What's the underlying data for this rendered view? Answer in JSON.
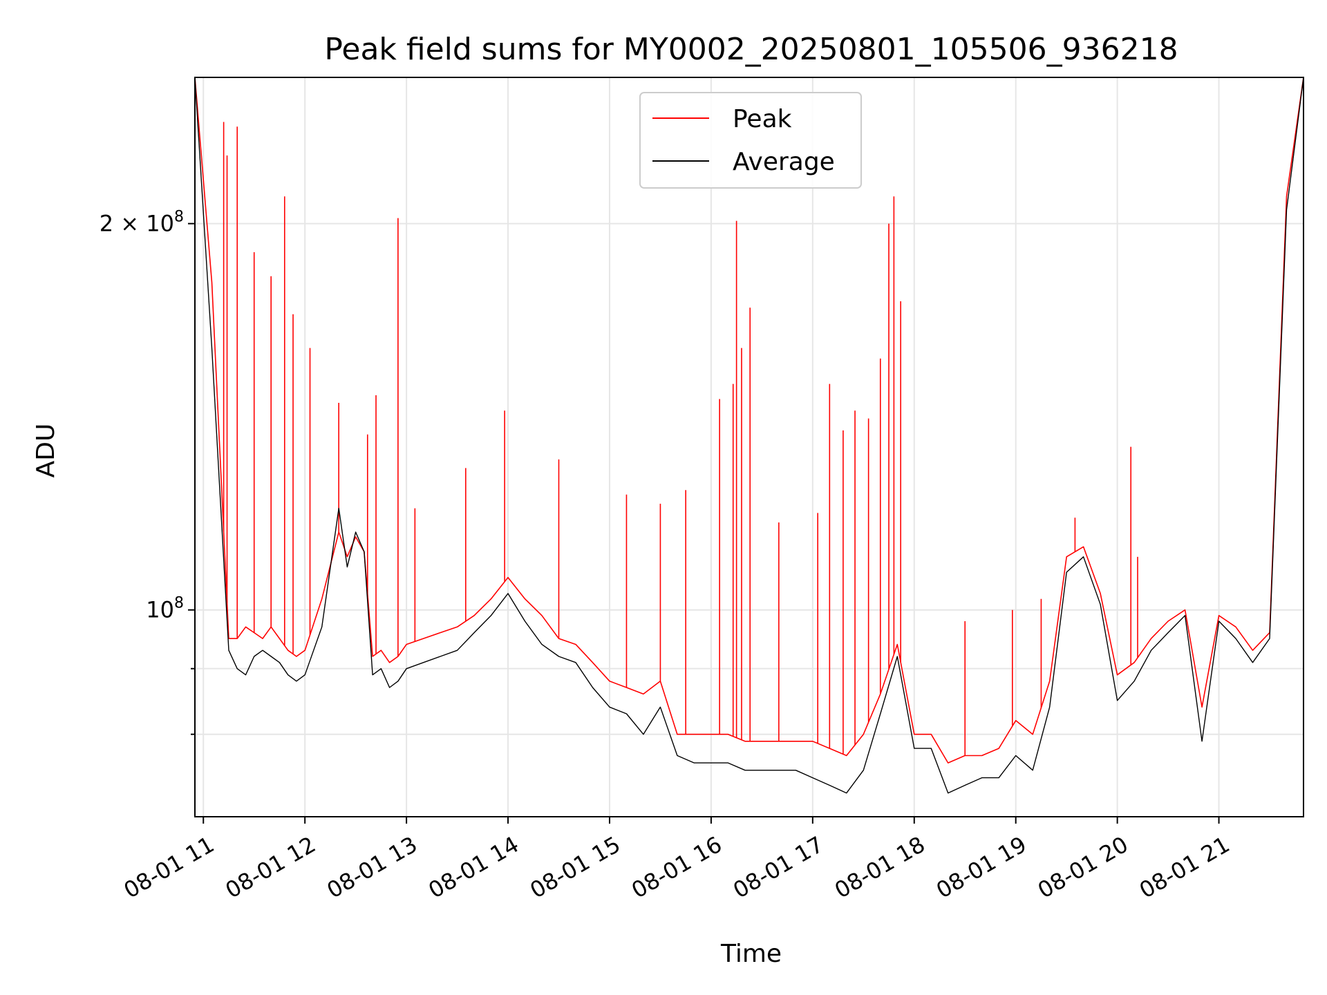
{
  "chart_data": {
    "type": "line",
    "title": "Peak field sums for MY0002_20250801_105506_936218",
    "xlabel": "Time",
    "ylabel": "ADU",
    "y_scale": "log",
    "xlim": [
      "2025-08-01 10:55",
      "2025-08-01 21:50"
    ],
    "ylim": [
      69000000,
      260000000
    ],
    "grid": true,
    "legend_position": "upper center",
    "x_ticks": [
      {
        "value": "2025-08-01 11:00",
        "label": "08-01 11"
      },
      {
        "value": "2025-08-01 12:00",
        "label": "08-01 12"
      },
      {
        "value": "2025-08-01 13:00",
        "label": "08-01 13"
      },
      {
        "value": "2025-08-01 14:00",
        "label": "08-01 14"
      },
      {
        "value": "2025-08-01 15:00",
        "label": "08-01 15"
      },
      {
        "value": "2025-08-01 16:00",
        "label": "08-01 16"
      },
      {
        "value": "2025-08-01 17:00",
        "label": "08-01 17"
      },
      {
        "value": "2025-08-01 18:00",
        "label": "08-01 18"
      },
      {
        "value": "2025-08-01 19:00",
        "label": "08-01 19"
      },
      {
        "value": "2025-08-01 20:00",
        "label": "08-01 20"
      },
      {
        "value": "2025-08-01 21:00",
        "label": "08-01 21"
      }
    ],
    "y_major_ticks": [
      {
        "value": 100000000,
        "base": "10",
        "exp": "8"
      },
      {
        "value": 200000000,
        "mant": "2",
        "base": "10",
        "exp": "8"
      }
    ],
    "y_minor_ticks": [
      80000000,
      90000000
    ],
    "series": [
      {
        "name": "Peak",
        "color": "#ff0000",
        "x": [
          "10:55",
          "11:05",
          "11:15",
          "11:20",
          "11:25",
          "11:30",
          "11:35",
          "11:40",
          "11:45",
          "11:50",
          "11:55",
          "12:00",
          "12:10",
          "12:20",
          "12:25",
          "12:30",
          "12:35",
          "12:40",
          "12:45",
          "12:50",
          "12:55",
          "13:00",
          "13:10",
          "13:20",
          "13:30",
          "13:40",
          "13:50",
          "14:00",
          "14:10",
          "14:20",
          "14:30",
          "14:40",
          "14:50",
          "15:00",
          "15:10",
          "15:20",
          "15:30",
          "15:40",
          "15:50",
          "16:00",
          "16:10",
          "16:20",
          "16:30",
          "16:40",
          "16:50",
          "17:00",
          "17:10",
          "17:20",
          "17:30",
          "17:40",
          "17:50",
          "18:00",
          "18:10",
          "18:20",
          "18:30",
          "18:40",
          "18:50",
          "19:00",
          "19:10",
          "19:20",
          "19:30",
          "19:40",
          "19:50",
          "20:00",
          "20:10",
          "20:20",
          "20:30",
          "20:40",
          "20:50",
          "21:00",
          "21:10",
          "21:20",
          "21:30",
          "21:40",
          "21:50"
        ],
        "values": [
          260000000,
          180000000,
          95000000,
          95000000,
          97000000,
          96000000,
          95000000,
          97000000,
          95000000,
          93000000,
          92000000,
          93000000,
          102000000,
          115000000,
          110000000,
          114000000,
          111000000,
          92000000,
          93000000,
          91000000,
          92000000,
          94000000,
          95000000,
          96000000,
          97000000,
          99000000,
          102000000,
          106000000,
          102000000,
          99000000,
          95000000,
          94000000,
          91000000,
          88000000,
          87000000,
          86000000,
          88000000,
          80000000,
          80000000,
          80000000,
          80000000,
          79000000,
          79000000,
          79000000,
          79000000,
          79000000,
          78000000,
          77000000,
          80000000,
          86000000,
          94000000,
          80000000,
          80000000,
          76000000,
          77000000,
          77000000,
          78000000,
          82000000,
          80000000,
          88000000,
          110000000,
          112000000,
          103000000,
          89000000,
          91000000,
          95000000,
          98000000,
          100000000,
          84000000,
          99000000,
          97000000,
          93000000,
          96000000,
          210000000,
          260000000
        ],
        "peak_spikes": [
          {
            "x": "11:12",
            "value": 240000000
          },
          {
            "x": "11:14",
            "value": 226000000
          },
          {
            "x": "11:20",
            "value": 238000000
          },
          {
            "x": "11:30",
            "value": 190000000
          },
          {
            "x": "11:40",
            "value": 182000000
          },
          {
            "x": "11:48",
            "value": 210000000
          },
          {
            "x": "11:53",
            "value": 170000000
          },
          {
            "x": "12:03",
            "value": 160000000
          },
          {
            "x": "12:20",
            "value": 145000000
          },
          {
            "x": "12:37",
            "value": 137000000
          },
          {
            "x": "12:42",
            "value": 147000000
          },
          {
            "x": "12:55",
            "value": 202000000
          },
          {
            "x": "13:05",
            "value": 120000000
          },
          {
            "x": "13:35",
            "value": 129000000
          },
          {
            "x": "13:58",
            "value": 143000000
          },
          {
            "x": "14:30",
            "value": 131000000
          },
          {
            "x": "15:10",
            "value": 123000000
          },
          {
            "x": "15:30",
            "value": 121000000
          },
          {
            "x": "15:45",
            "value": 124000000
          },
          {
            "x": "16:05",
            "value": 146000000
          },
          {
            "x": "16:13",
            "value": 150000000
          },
          {
            "x": "16:15",
            "value": 201000000
          },
          {
            "x": "16:18",
            "value": 160000000
          },
          {
            "x": "16:23",
            "value": 172000000
          },
          {
            "x": "16:40",
            "value": 117000000
          },
          {
            "x": "17:03",
            "value": 119000000
          },
          {
            "x": "17:10",
            "value": 150000000
          },
          {
            "x": "17:18",
            "value": 138000000
          },
          {
            "x": "17:25",
            "value": 143000000
          },
          {
            "x": "17:33",
            "value": 141000000
          },
          {
            "x": "17:40",
            "value": 157000000
          },
          {
            "x": "17:45",
            "value": 200000000
          },
          {
            "x": "17:48",
            "value": 210000000
          },
          {
            "x": "17:52",
            "value": 174000000
          },
          {
            "x": "18:30",
            "value": 98000000
          },
          {
            "x": "18:58",
            "value": 100000000
          },
          {
            "x": "19:15",
            "value": 102000000
          },
          {
            "x": "19:35",
            "value": 118000000
          },
          {
            "x": "20:08",
            "value": 134000000
          },
          {
            "x": "20:12",
            "value": 110000000
          }
        ]
      },
      {
        "name": "Average",
        "color": "#000000",
        "x": [
          "10:55",
          "11:05",
          "11:15",
          "11:20",
          "11:25",
          "11:30",
          "11:35",
          "11:40",
          "11:45",
          "11:50",
          "11:55",
          "12:00",
          "12:10",
          "12:20",
          "12:25",
          "12:30",
          "12:35",
          "12:40",
          "12:45",
          "12:50",
          "12:55",
          "13:00",
          "13:10",
          "13:20",
          "13:30",
          "13:40",
          "13:50",
          "14:00",
          "14:10",
          "14:20",
          "14:30",
          "14:40",
          "14:50",
          "15:00",
          "15:10",
          "15:20",
          "15:30",
          "15:40",
          "15:50",
          "16:00",
          "16:10",
          "16:20",
          "16:30",
          "16:40",
          "16:50",
          "17:00",
          "17:10",
          "17:20",
          "17:30",
          "17:40",
          "17:50",
          "18:00",
          "18:10",
          "18:20",
          "18:30",
          "18:40",
          "18:50",
          "19:00",
          "19:10",
          "19:20",
          "19:30",
          "19:40",
          "19:50",
          "20:00",
          "20:10",
          "20:20",
          "20:30",
          "20:40",
          "20:50",
          "21:00",
          "21:10",
          "21:20",
          "21:30",
          "21:40",
          "21:50"
        ],
        "values": [
          260000000,
          160000000,
          93000000,
          90000000,
          89000000,
          92000000,
          93000000,
          92000000,
          91000000,
          89000000,
          88000000,
          89000000,
          97000000,
          120000000,
          108000000,
          115000000,
          111000000,
          89000000,
          90000000,
          87000000,
          88000000,
          90000000,
          91000000,
          92000000,
          93000000,
          96000000,
          99000000,
          103000000,
          98000000,
          94000000,
          92000000,
          91000000,
          87000000,
          84000000,
          83000000,
          80000000,
          84000000,
          77000000,
          76000000,
          76000000,
          76000000,
          75000000,
          75000000,
          75000000,
          75000000,
          74000000,
          73000000,
          72000000,
          75000000,
          83000000,
          92000000,
          78000000,
          78000000,
          72000000,
          73000000,
          74000000,
          74000000,
          77000000,
          75000000,
          84000000,
          107000000,
          110000000,
          101000000,
          85000000,
          88000000,
          93000000,
          96000000,
          99000000,
          79000000,
          98000000,
          95000000,
          91000000,
          95000000,
          205000000,
          260000000
        ]
      }
    ]
  },
  "legend": {
    "items": [
      {
        "label": "Peak",
        "color": "#ff0000"
      },
      {
        "label": "Average",
        "color": "#000000"
      }
    ]
  }
}
